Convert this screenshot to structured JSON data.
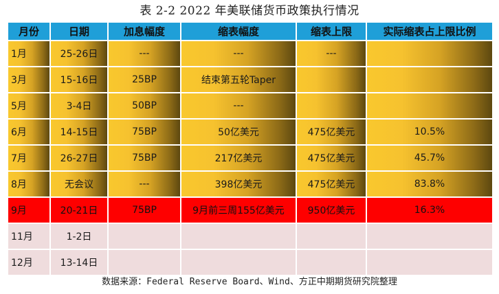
{
  "title": "表 2-2 2022 年美联储货币政策执行情况",
  "table": {
    "headers": [
      "月份",
      "日期",
      "加息幅度",
      "缩表幅度",
      "缩表上限",
      "实际缩表占上限比例"
    ],
    "rows": [
      [
        "1月",
        "25-26日",
        "---",
        "---",
        "---",
        ""
      ],
      [
        "3月",
        "15-16日",
        "25BP",
        "结束第五轮Taper",
        "",
        ""
      ],
      [
        "5月",
        "3-4日",
        "50BP",
        "---",
        "",
        ""
      ],
      [
        "6月",
        "14-15日",
        "75BP",
        "50亿美元",
        "475亿美元",
        "10.5%"
      ],
      [
        "7月",
        "26-27日",
        "75BP",
        "217亿美元",
        "475亿美元",
        "45.7%"
      ],
      [
        "8月",
        "无会议",
        "---",
        "398亿美元",
        "475亿美元",
        "83.8%"
      ],
      [
        "9月",
        "20-21日",
        "75BP",
        "9月前三周155亿美元",
        "950亿美元",
        "16.3%"
      ],
      [
        "11月",
        "1-2日",
        "",
        "",
        "",
        ""
      ],
      [
        "12月",
        "13-14日",
        "",
        "",
        "",
        ""
      ]
    ]
  },
  "source": "数据来源：Federal Reserve Board、Wind、方正中期期货研究院整理",
  "colors": {
    "header": "#1f9fd8",
    "gold": "#f6c22f",
    "gold_dark": "#5d4810",
    "highlight": "#fe0000",
    "pink": "#efdcdd"
  }
}
